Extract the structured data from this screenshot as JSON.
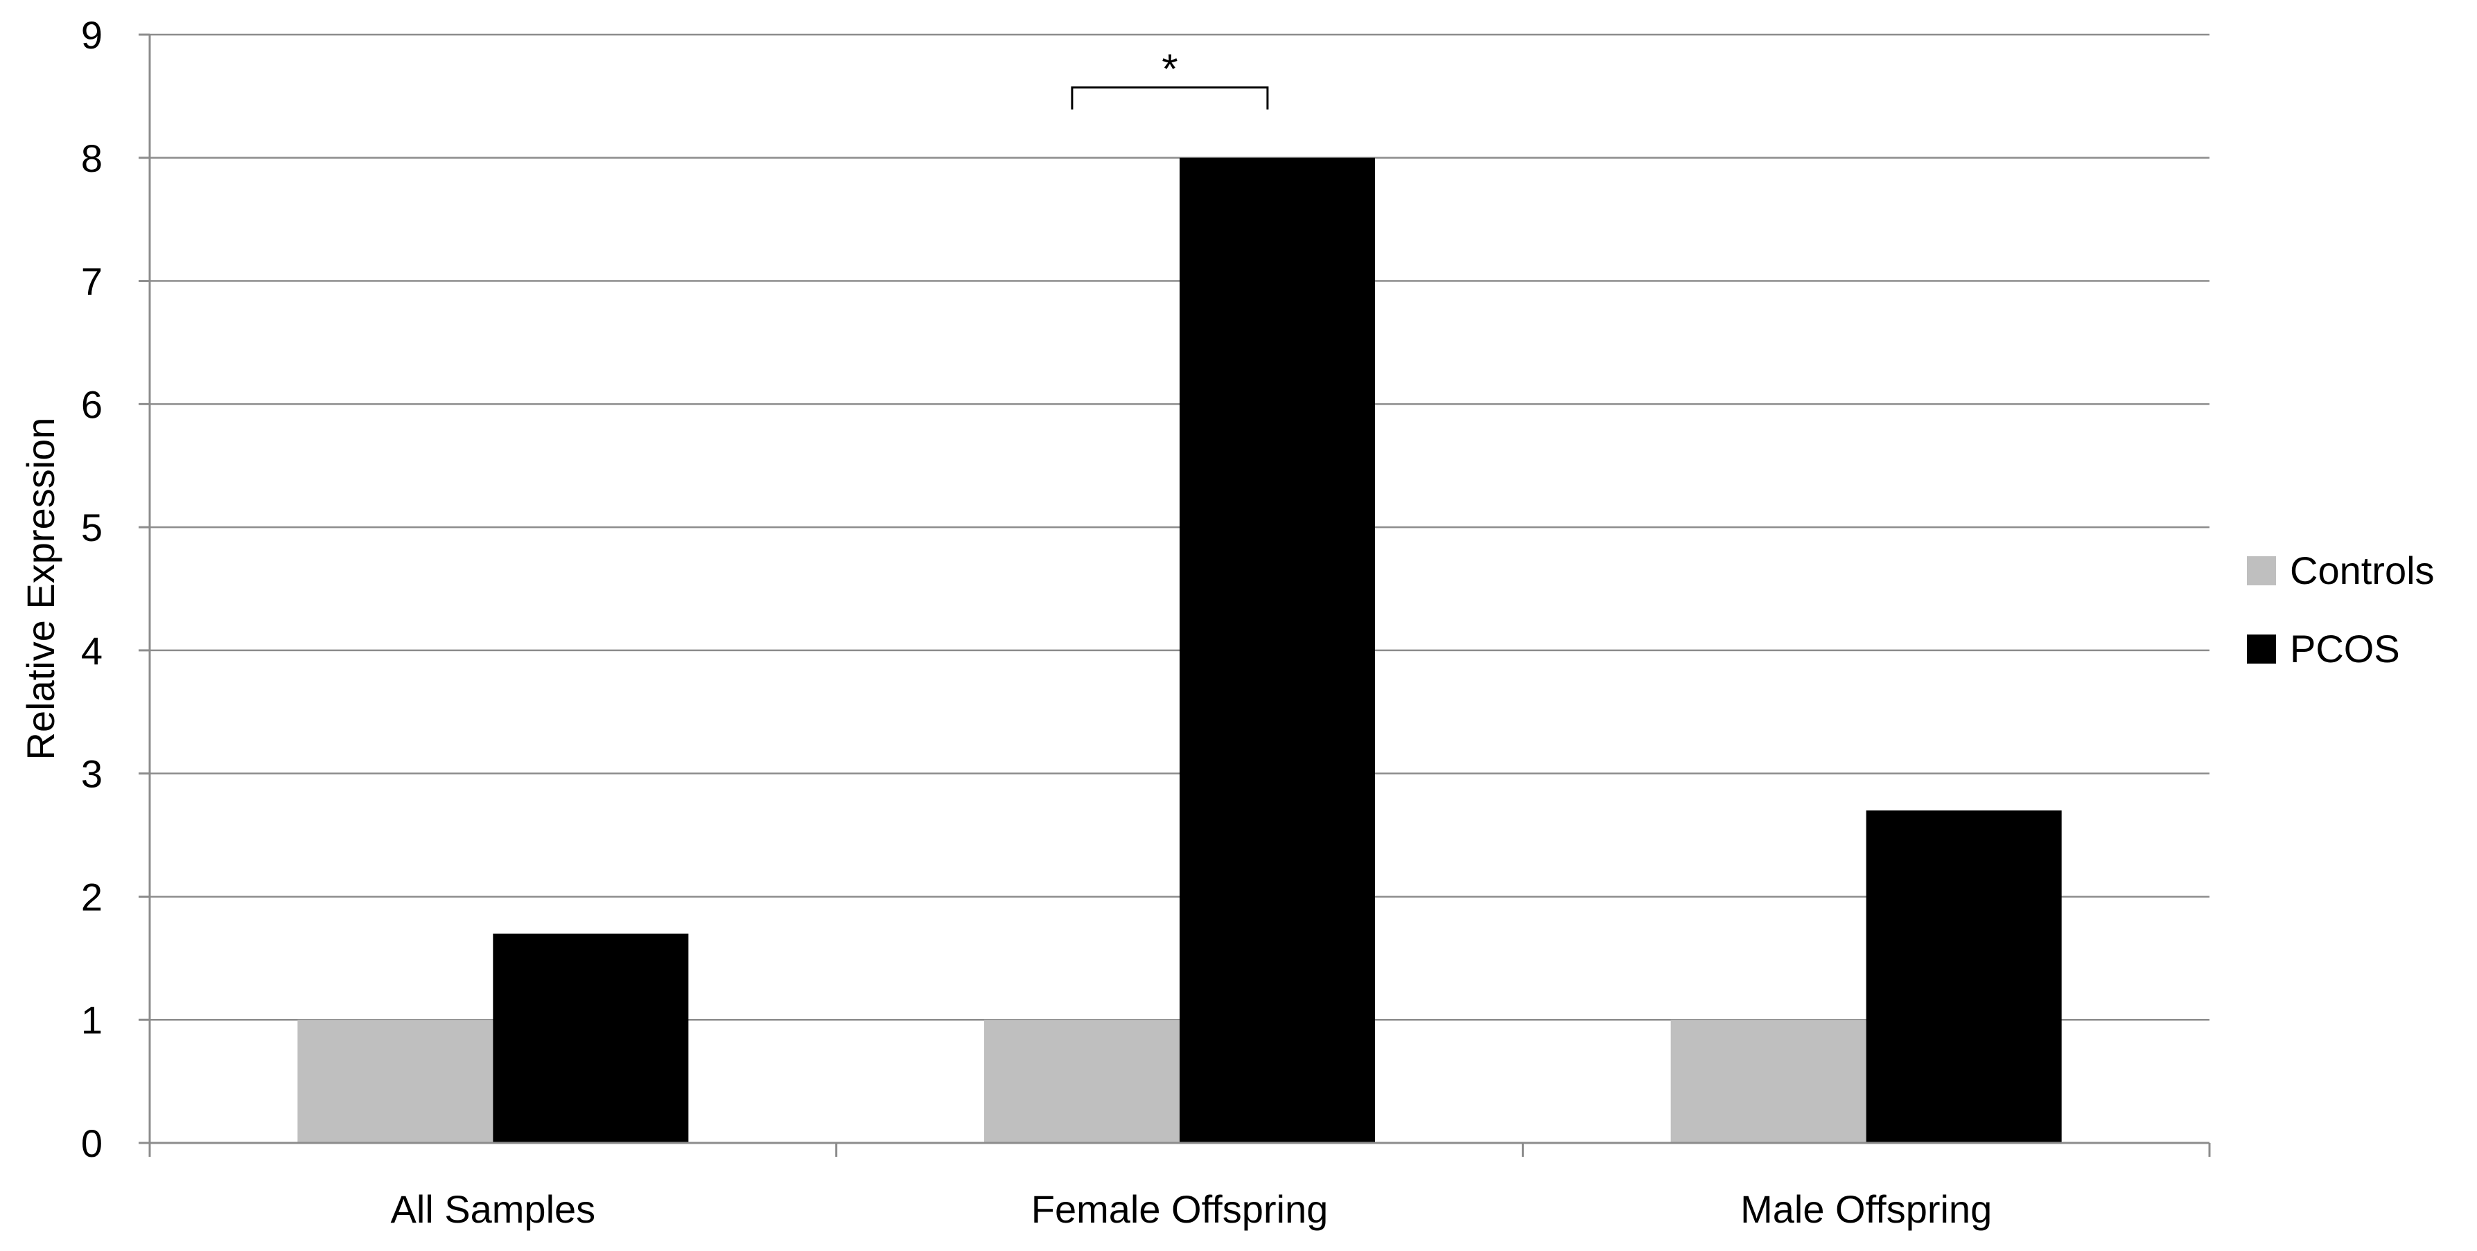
{
  "chart_data": {
    "type": "bar",
    "title": "",
    "xlabel": "",
    "ylabel": "Relative Expression",
    "ylim": [
      0,
      9
    ],
    "yticks": [
      0,
      1,
      2,
      3,
      4,
      5,
      6,
      7,
      8,
      9
    ],
    "grid": true,
    "legend_position": "right",
    "categories": [
      "All Samples",
      "Female Offspring",
      "Male Offspring"
    ],
    "series": [
      {
        "name": "Controls",
        "color": "#bfbfbf",
        "values": [
          1.0,
          1.0,
          1.0
        ]
      },
      {
        "name": "PCOS",
        "color": "#000000",
        "values": [
          1.7,
          8.0,
          2.7
        ]
      }
    ],
    "annotations": [
      {
        "text": "*",
        "category": "Female Offspring",
        "y": 8.6
      }
    ]
  }
}
